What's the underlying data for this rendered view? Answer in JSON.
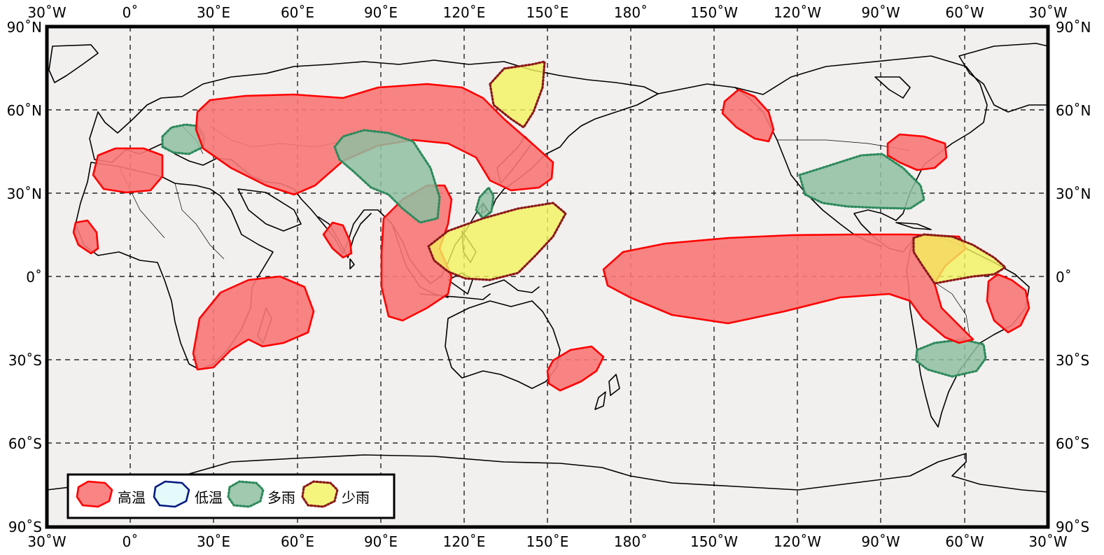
{
  "colors": {
    "frame": "#000000",
    "map_background": "#f2f0ef",
    "high_temp_fill": "#f87777",
    "high_temp_stroke": "#ff0000",
    "low_temp_fill": "#e4fafa",
    "low_temp_stroke": "#001a80",
    "heavy_rain_fill": "#8fbfa2",
    "heavy_rain_stroke": "#2e8a5c",
    "light_rain_fill": "#f2f25e",
    "light_rain_stroke": "#8b1a1a"
  },
  "map": {
    "projection": "equirectangular",
    "lon_range": [
      "30°W",
      "30°W"
    ],
    "lat_range": [
      "90°S",
      "90°N"
    ],
    "grid": true
  },
  "axes": {
    "lon_labels": [
      "30˚W",
      "0˚",
      "30˚E",
      "60˚E",
      "90˚E",
      "120˚E",
      "150˚E",
      "180˚",
      "150˚W",
      "120˚W",
      "90˚W",
      "60˚W",
      "30˚W"
    ],
    "lat_labels": [
      "90˚N",
      "60˚N",
      "30˚N",
      "0˚",
      "30˚S",
      "60˚S",
      "90˚S"
    ]
  },
  "legend": {
    "items": [
      {
        "label": "高温",
        "category": "high_temp"
      },
      {
        "label": "低温",
        "category": "low_temp"
      },
      {
        "label": "多雨",
        "category": "heavy_rain"
      },
      {
        "label": "少雨",
        "category": "light_rain"
      }
    ]
  },
  "regions": [
    {
      "category": "high_temp",
      "name": "iberia"
    },
    {
      "category": "high_temp",
      "name": "west-africa"
    },
    {
      "category": "high_temp",
      "name": "eurasia"
    },
    {
      "category": "high_temp",
      "name": "india-south"
    },
    {
      "category": "high_temp",
      "name": "southeast-asia"
    },
    {
      "category": "high_temp",
      "name": "southern-africa"
    },
    {
      "category": "high_temp",
      "name": "southeast-australia"
    },
    {
      "category": "high_temp",
      "name": "alaska"
    },
    {
      "category": "high_temp",
      "name": "great-lakes"
    },
    {
      "category": "high_temp",
      "name": "equatorial-pacific"
    },
    {
      "category": "high_temp",
      "name": "east-brazil"
    },
    {
      "category": "heavy_rain",
      "name": "central-europe"
    },
    {
      "category": "heavy_rain",
      "name": "tibet-southwest-china"
    },
    {
      "category": "heavy_rain",
      "name": "taiwan"
    },
    {
      "category": "heavy_rain",
      "name": "us-south"
    },
    {
      "category": "heavy_rain",
      "name": "southeast-south-america"
    },
    {
      "category": "light_rain",
      "name": "kamchatka"
    },
    {
      "category": "light_rain",
      "name": "philippines"
    },
    {
      "category": "light_rain",
      "name": "northern-south-america"
    }
  ]
}
